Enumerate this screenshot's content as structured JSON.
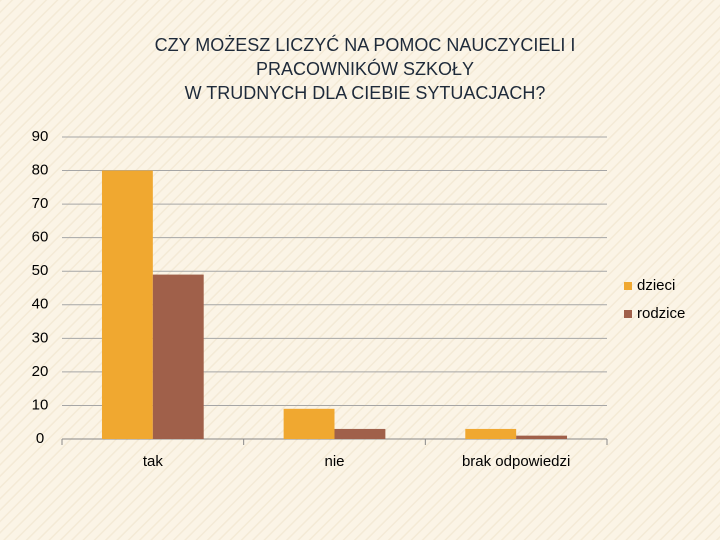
{
  "chart_data": {
    "type": "bar",
    "title": [
      "CZY  MOŻESZ  LICZYĆ NA POMOC NAUCZYCIELI I",
      "PRACOWNIKÓW SZKOŁY",
      "W TRUDNYCH DLA CIEBIE  SYTUACJACH?"
    ],
    "categories": [
      "tak",
      "nie",
      "brak odpowiedzi"
    ],
    "series": [
      {
        "name": "dzieci",
        "color": "#f0a830",
        "values": [
          80,
          9,
          3
        ]
      },
      {
        "name": "rodzice",
        "color": "#a0604a",
        "values": [
          49,
          3,
          1
        ]
      }
    ],
    "ylim": [
      0,
      90
    ],
    "yticks": [
      0,
      10,
      20,
      30,
      40,
      50,
      60,
      70,
      80,
      90
    ],
    "grid": true,
    "legend": "right"
  }
}
